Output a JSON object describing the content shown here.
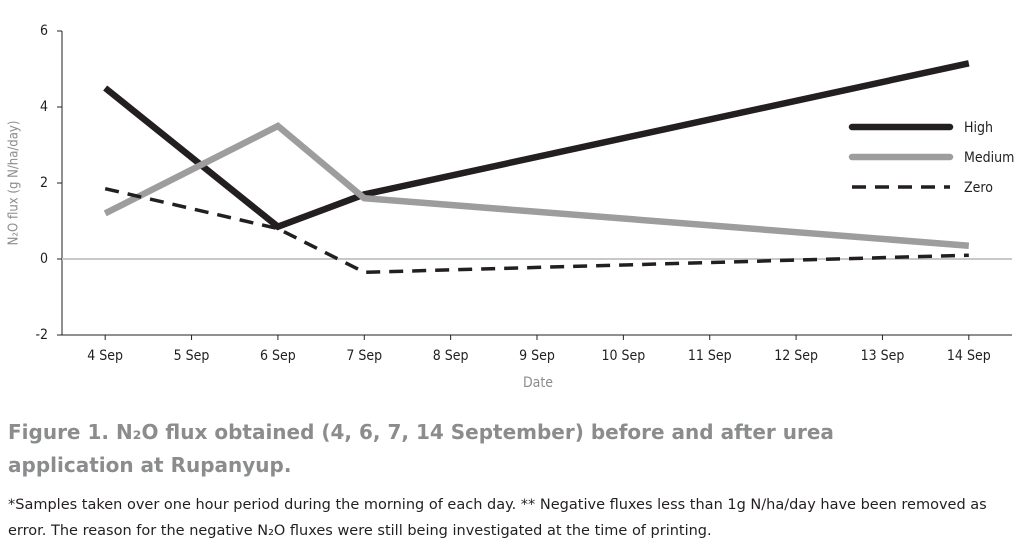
{
  "chart_data": {
    "type": "line",
    "x": [
      4,
      6,
      7,
      14
    ],
    "xlim": [
      3.5,
      14.5
    ],
    "xticks": [
      {
        "value": 4,
        "label": "4 Sep"
      },
      {
        "value": 5,
        "label": "5 Sep"
      },
      {
        "value": 6,
        "label": "6 Sep"
      },
      {
        "value": 7,
        "label": "7 Sep"
      },
      {
        "value": 8,
        "label": "8 Sep"
      },
      {
        "value": 9,
        "label": "9 Sep"
      },
      {
        "value": 10,
        "label": "10 Sep"
      },
      {
        "value": 11,
        "label": "11 Sep"
      },
      {
        "value": 12,
        "label": "12 Sep"
      },
      {
        "value": 13,
        "label": "13 Sep"
      },
      {
        "value": 14,
        "label": "14 Sep"
      }
    ],
    "ylim": [
      -2,
      6
    ],
    "yticks": [
      -2,
      0,
      2,
      4,
      6
    ],
    "xlabel": "Date",
    "ylabel": "N₂O flux (g N/ha/day)",
    "legend": "right",
    "series": [
      {
        "name": "High",
        "color": "#231f20",
        "dashed": false,
        "values": [
          4.5,
          0.85,
          1.7,
          5.15
        ]
      },
      {
        "name": "Medium",
        "color": "#9d9d9d",
        "dashed": false,
        "values": [
          1.2,
          3.5,
          1.6,
          0.35
        ]
      },
      {
        "name": "Zero",
        "color": "#231f20",
        "dashed": true,
        "values": [
          1.85,
          0.8,
          -0.35,
          0.1
        ]
      }
    ],
    "caption": "Figure 1. N₂O flux obtained (4, 6, 7, 14 September) before and after urea application at Rupanyup.",
    "note": "*Samples taken over one hour period during the morning of each day. ** Negative fluxes less than 1g N/ha/day have been removed as error. The reason for the negative N₂O fluxes were still being investigated at the time of printing."
  }
}
